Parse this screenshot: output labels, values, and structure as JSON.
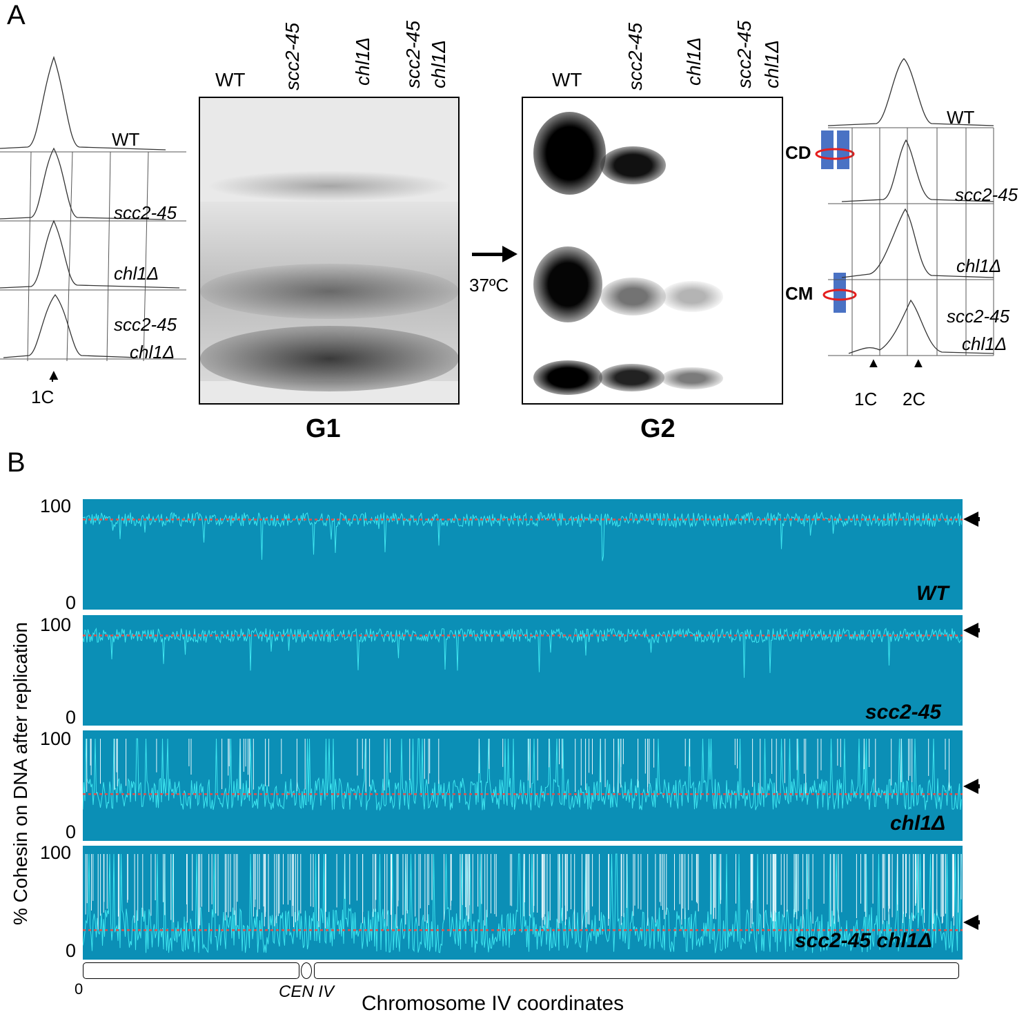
{
  "panel_a": {
    "letter": "A",
    "facs_left": {
      "labels": [
        "WT",
        "scc2-45",
        "chl1Δ",
        "scc2-45",
        "chl1Δ"
      ],
      "marker": "1C"
    },
    "gel_g1": {
      "lanes": [
        "WT",
        "scc2-45",
        "chl1Δ",
        "scc2-45",
        "chl1Δ"
      ],
      "title": "G1"
    },
    "shift": {
      "temperature": "37ºC"
    },
    "gel_g2": {
      "lanes": [
        "WT",
        "scc2-45",
        "chl1Δ",
        "scc2-45",
        "chl1Δ"
      ],
      "title": "G2",
      "species": [
        "CD",
        "CM"
      ]
    },
    "facs_right": {
      "labels": [
        "WT",
        "scc2-45",
        "chl1Δ",
        "scc2-45",
        "chl1Δ"
      ],
      "markers": [
        "1C",
        "2C"
      ]
    }
  },
  "panel_b": {
    "letter": "B",
    "y_axis_label": "% Cohesin on DNA after replication",
    "x_axis_label": "Chromosome IV coordinates",
    "x_origin": "0",
    "centromere_label": "CEN IV",
    "y_ticks": [
      "100",
      "0"
    ],
    "tracks": [
      {
        "name": "WT",
        "average_percent": 88
      },
      {
        "name": "scc2-45",
        "average_percent": 88
      },
      {
        "name": "chl1Δ",
        "average_percent": 45
      },
      {
        "name": "scc2-45 chl1Δ",
        "average_percent": 27
      }
    ],
    "colors": {
      "track_bg": "#0b8fb6",
      "signal": "#3fe6f0",
      "average_line": "#e0504a"
    }
  }
}
